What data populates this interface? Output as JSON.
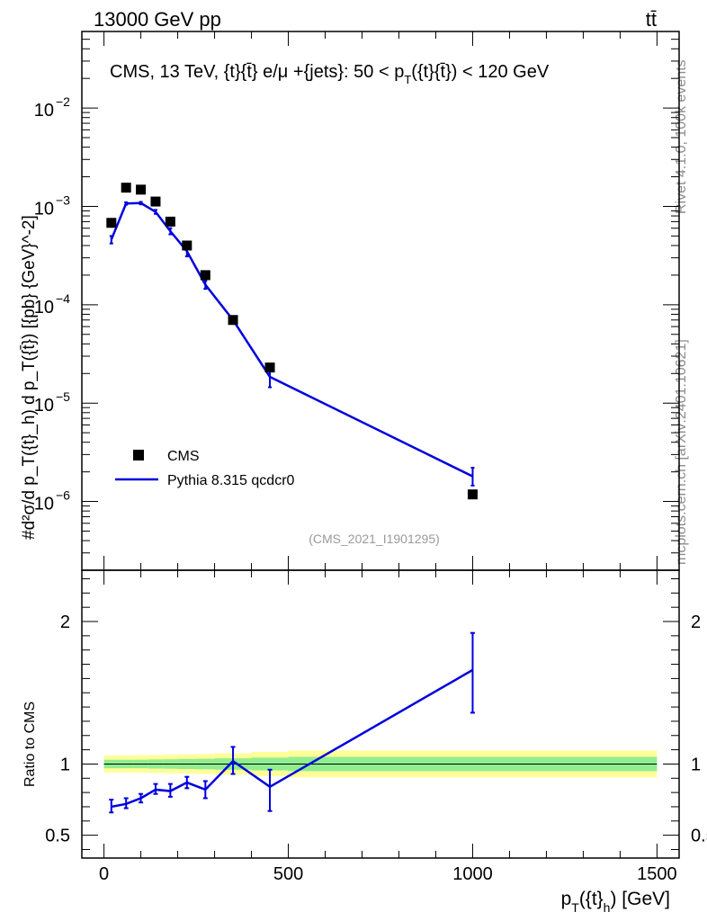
{
  "header": {
    "energy_label": "13000 GeV pp",
    "process_label": "tt̄"
  },
  "side_text": {
    "rivet": "Rivet 4.1.0,  100k events",
    "mcplots": "mcplots.cern.ch [arXiv:2401.10621]"
  },
  "reference": "(CMS_2021_I1901295)",
  "chart_data": [
    {
      "type": "scatter",
      "panel": "main",
      "title": "CMS, 13 TeV, {t}{t̄} e/μ +{jets}: 50 <  p_T({t}{t̄}) < 120 GeV",
      "title_parts": {
        "lead": "CMS, 13 TeV, {t}{t̄} e/μ +{jets}: 50 <  p",
        "sub": "T",
        "tail": "({t}{t̄}) < 120 GeV"
      },
      "ylabel": "#d²σ/d p_T({t}_h) d p_T({t̄}) [{pb} {GeV}^-2]",
      "yscale": "log",
      "ylim": [
        2e-07,
        0.06
      ],
      "xlim": [
        -60,
        1560
      ],
      "y_ticks": [
        {
          "value": 1e-06,
          "exp": "−6"
        },
        {
          "value": 1e-05,
          "exp": "−5"
        },
        {
          "value": 0.0001,
          "exp": "−4"
        },
        {
          "value": 0.001,
          "exp": "−3"
        },
        {
          "value": 0.01,
          "exp": "−2"
        }
      ],
      "tick_base": "10",
      "legend": {
        "position": "bottom-left",
        "entries": [
          "CMS",
          "Pythia 8.315 qcdcr0"
        ]
      },
      "series": [
        {
          "name": "CMS",
          "style": "markers",
          "color": "#000000",
          "x": [
            20,
            60,
            100,
            140,
            180,
            225,
            275,
            350,
            450,
            1000
          ],
          "y": [
            0.00068,
            0.00155,
            0.00148,
            0.00112,
            0.0007,
            0.0004,
            0.0002,
            7e-05,
            2.3e-05,
            1.18e-06
          ]
        },
        {
          "name": "Pythia 8.315 qcdcr0",
          "style": "line",
          "color": "#0000dd",
          "x": [
            20,
            60,
            100,
            140,
            180,
            225,
            275,
            350,
            450,
            1000
          ],
          "y": [
            0.00046,
            0.00107,
            0.00108,
            0.00088,
            0.00056,
            0.00035,
            0.00016,
            7e-05,
            1.85e-05,
            1.8e-06
          ],
          "err_lo": [
            0.00042,
            0.00104,
            0.00105,
            0.00084,
            0.00052,
            0.00031,
            0.000145,
            6.5e-05,
            1.45e-05,
            1.45e-06
          ],
          "err_hi": [
            0.0005,
            0.0011,
            0.00111,
            0.00092,
            0.0006,
            0.00039,
            0.000175,
            7.5e-05,
            2.3e-05,
            2.2e-06
          ]
        }
      ]
    },
    {
      "type": "line",
      "panel": "ratio",
      "ylabel": "Ratio to CMS",
      "xlabel_parts": {
        "lead": "p",
        "sub": "T",
        "mid": "({t}",
        "sub2": "h",
        "tail": ") [GeV]"
      },
      "xlim": [
        -60,
        1560
      ],
      "ylim": [
        0.34,
        2.36
      ],
      "x_ticks": [
        "0",
        "500",
        "1000",
        "1500"
      ],
      "y_ticks": [
        "0.5",
        "1",
        "2"
      ],
      "bands": {
        "edges": [
          0,
          40,
          80,
          120,
          160,
          200,
          250,
          300,
          400,
          500,
          1500
        ],
        "inner_half": [
          0.03,
          0.03,
          0.03,
          0.032,
          0.033,
          0.035,
          0.037,
          0.04,
          0.045,
          0.05
        ],
        "outer_half": [
          0.06,
          0.06,
          0.062,
          0.063,
          0.065,
          0.067,
          0.07,
          0.075,
          0.085,
          0.095
        ],
        "inner_color": "#90ee90",
        "outer_color": "#ffff99"
      },
      "series": [
        {
          "name": "Pythia 8.315 qcdcr0",
          "color": "#0000dd",
          "x": [
            20,
            60,
            100,
            140,
            180,
            225,
            275,
            350,
            450,
            1000
          ],
          "y": [
            0.7,
            0.72,
            0.76,
            0.82,
            0.81,
            0.87,
            0.82,
            1.02,
            0.84,
            1.66
          ],
          "err_lo": [
            0.66,
            0.69,
            0.73,
            0.79,
            0.77,
            0.83,
            0.76,
            0.93,
            0.67,
            1.36
          ],
          "err_hi": [
            0.75,
            0.76,
            0.79,
            0.86,
            0.86,
            0.91,
            0.88,
            1.12,
            0.96,
            1.92
          ]
        }
      ]
    }
  ]
}
